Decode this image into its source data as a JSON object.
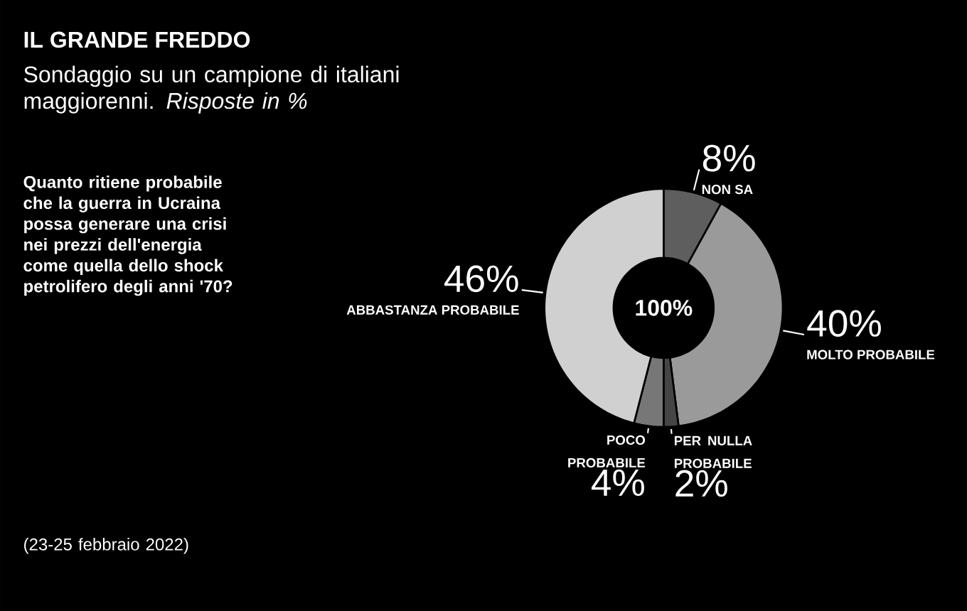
{
  "chart_data": {
    "type": "donut",
    "title": "IL GRANDE FREDDO",
    "subtitle": "Sondaggio su un campione di italiani maggiorenni. *Risposte in %*",
    "categories": [
      "NON SA",
      "MOLTO PROBABILE",
      "PER NULLA PROBABILE",
      "POCO PROBABILE",
      "ABBASTANZA PROBABILE"
    ],
    "values": [
      8,
      40,
      2,
      4,
      46
    ],
    "colors": [
      "#5e5e5e",
      "#9a9a9a",
      "#454545",
      "#777777",
      "#d0d0d0"
    ],
    "value_labels": [
      "8%",
      "40%",
      "2%",
      "4%",
      "46%"
    ],
    "annotations": [
      "Quanto ritiene probabile che la guerra in Ucraina possa generare una crisi nei prezzi dell'energia come quella dello shock petrolifero degli anni '70?",
      "100%",
      "(23-25 febbraio 2022)"
    ]
  }
}
